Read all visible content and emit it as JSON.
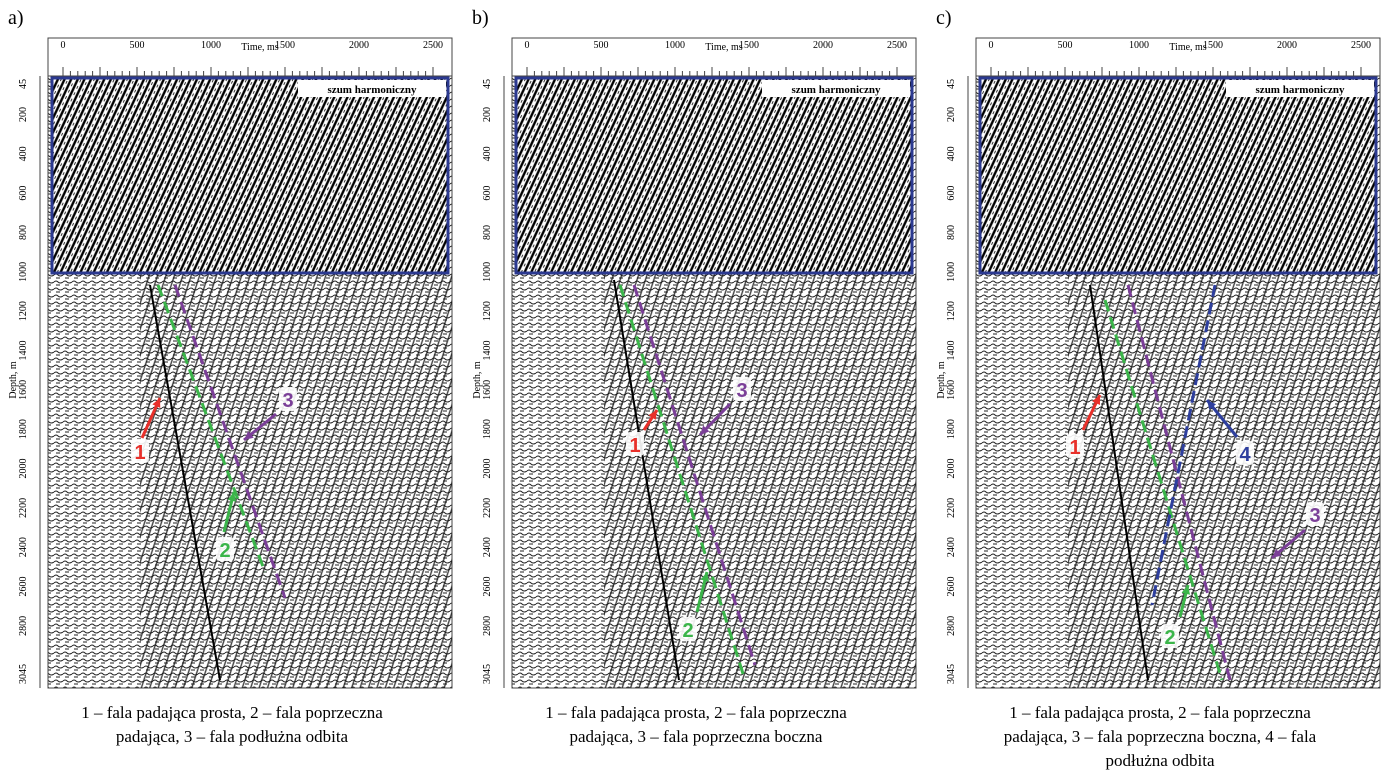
{
  "panels": [
    {
      "label": "a)",
      "x_axis": {
        "label": "Time, ms",
        "ticks": [
          0,
          500,
          1000,
          1500,
          2000,
          2500
        ]
      },
      "y_axis": {
        "label": "Depth, m",
        "ticks": [
          45,
          200,
          400,
          600,
          800,
          1000,
          1200,
          1400,
          1600,
          1800,
          2000,
          2200,
          2400,
          2600,
          2800,
          3045
        ]
      },
      "box_label": "szum harmoniczny",
      "markers": [
        "1",
        "2",
        "3"
      ],
      "caption": [
        "1 – fala padająca prosta, 2 – fala poprzeczna",
        "padająca, 3 – fala podłużna odbita"
      ]
    },
    {
      "label": "b)",
      "x_axis": {
        "label": "Time, ms",
        "ticks": [
          0,
          500,
          1000,
          1500,
          2000,
          2500
        ]
      },
      "y_axis": {
        "label": "Depth, m",
        "ticks": [
          45,
          200,
          400,
          600,
          800,
          1000,
          1200,
          1400,
          1600,
          1800,
          2000,
          2200,
          2400,
          2600,
          2800,
          3045
        ]
      },
      "box_label": "szum harmoniczny",
      "markers": [
        "1",
        "2",
        "3"
      ],
      "caption": [
        "1 – fala padająca prosta, 2 – fala poprzeczna",
        "padająca, 3 – fala poprzeczna boczna"
      ]
    },
    {
      "label": "c)",
      "x_axis": {
        "label": "Time, ms",
        "ticks": [
          0,
          500,
          1000,
          1500,
          2000,
          2500
        ]
      },
      "y_axis": {
        "label": "Depth, m",
        "ticks": [
          45,
          200,
          400,
          600,
          800,
          1000,
          1200,
          1400,
          1600,
          1800,
          2000,
          2200,
          2400,
          2600,
          2800,
          3045
        ]
      },
      "box_label": "szum harmoniczny",
      "markers": [
        "1",
        "2",
        "3",
        "4"
      ],
      "caption": [
        "1 – fala padająca prosta, 2 – fala poprzeczna",
        "padająca, 3 – fala poprzeczna boczna, 4 – fala",
        "podłużna odbita"
      ]
    }
  ]
}
